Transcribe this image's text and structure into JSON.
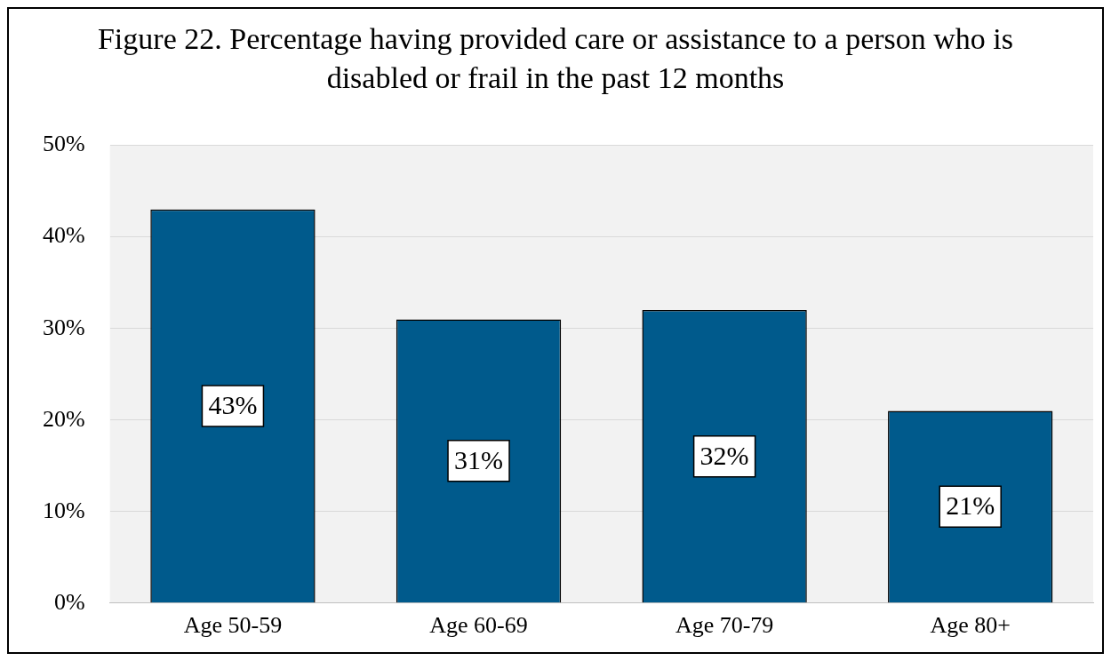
{
  "chart_data": {
    "type": "bar",
    "title": "Figure 22. Percentage having provided care or assistance to a person who is disabled or frail in the past 12 months",
    "categories": [
      "Age 50-59",
      "Age 60-69",
      "Age 70-79",
      "Age 80+"
    ],
    "values": [
      43,
      31,
      32,
      21
    ],
    "color": "#005a8c",
    "value_labels": [
      "43%",
      "31%",
      "32%",
      "21%"
    ],
    "ylim": [
      0,
      50
    ],
    "yticks": [
      {
        "value": 0,
        "label": "0%"
      },
      {
        "value": 10,
        "label": "10%"
      },
      {
        "value": 20,
        "label": "20%"
      },
      {
        "value": 30,
        "label": "30%"
      },
      {
        "value": 40,
        "label": "40%"
      },
      {
        "value": 50,
        "label": "50%"
      }
    ],
    "grid": "y",
    "legend": false
  }
}
